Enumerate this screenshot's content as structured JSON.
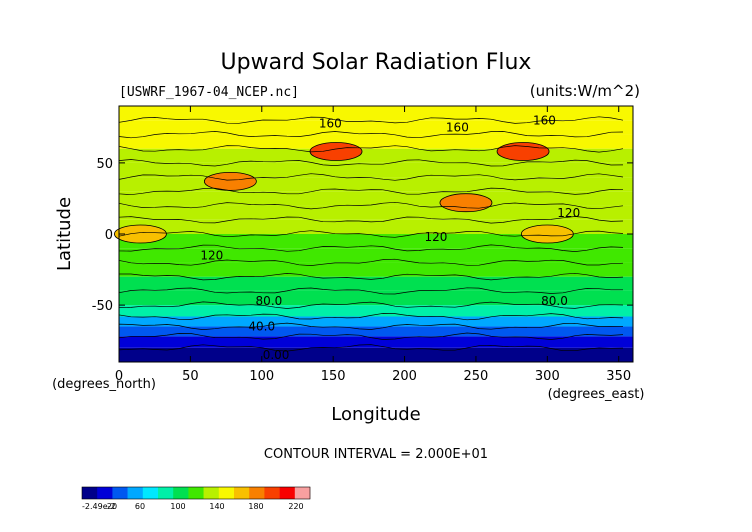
{
  "chart_data": {
    "type": "heatmap",
    "title": "Upward Solar Radiation Flux",
    "subtitle_left": "[USWRF_1967-04_NCEP.nc]",
    "subtitle_right": "(units:W/m^2)",
    "xlabel": "Longitude",
    "ylabel": "Latitude",
    "x_unit_note": "(degrees_east)",
    "y_unit_note": "(degrees_north)",
    "xlim": [
      0,
      360
    ],
    "ylim": [
      -90,
      90
    ],
    "x_ticks": [
      0,
      50,
      100,
      150,
      200,
      250,
      300,
      350
    ],
    "y_ticks": [
      -50,
      0,
      50
    ],
    "contour_interval_text": "CONTOUR INTERVAL = 2.000E+01",
    "contour_labels": [
      "160",
      "160",
      "160",
      "120",
      "120",
      "120",
      "80.0",
      "80.0",
      "40.0",
      "0.00"
    ],
    "colorbar": {
      "tick_labels": [
        "-2.49e-2",
        "20",
        "60",
        "100",
        "140",
        "180",
        "220"
      ],
      "min": 0,
      "max": 240,
      "colors": [
        "#00008a",
        "#0000d8",
        "#0058f0",
        "#00a8ff",
        "#00e8ff",
        "#00f0a8",
        "#00e050",
        "#40e800",
        "#b8f000",
        "#f8f800",
        "#f8c000",
        "#f88000",
        "#f84000",
        "#f80000",
        "#f8a0a0"
      ]
    },
    "latitude_profile": [
      {
        "lat": -90,
        "value": 2
      },
      {
        "lat": -80,
        "value": 10
      },
      {
        "lat": -72,
        "value": 22
      },
      {
        "lat": -65,
        "value": 45
      },
      {
        "lat": -58,
        "value": 75
      },
      {
        "lat": -50,
        "value": 90
      },
      {
        "lat": -40,
        "value": 105
      },
      {
        "lat": -30,
        "value": 115
      },
      {
        "lat": -20,
        "value": 118
      },
      {
        "lat": -10,
        "value": 125
      },
      {
        "lat": 0,
        "value": 130
      },
      {
        "lat": 10,
        "value": 130
      },
      {
        "lat": 20,
        "value": 135
      },
      {
        "lat": 30,
        "value": 140
      },
      {
        "lat": 40,
        "value": 130
      },
      {
        "lat": 50,
        "value": 135
      },
      {
        "lat": 60,
        "value": 150
      },
      {
        "lat": 70,
        "value": 160
      },
      {
        "lat": 80,
        "value": 150
      },
      {
        "lat": 90,
        "value": 140
      }
    ],
    "hotspots": [
      {
        "lon": 283,
        "lat": 58,
        "value": 200
      },
      {
        "lon": 152,
        "lat": 58,
        "value": 200
      },
      {
        "lon": 78,
        "lat": 37,
        "value": 190
      },
      {
        "lon": 243,
        "lat": 22,
        "value": 180
      },
      {
        "lon": 15,
        "lat": 0,
        "value": 160
      },
      {
        "lon": 300,
        "lat": 0,
        "value": 160
      }
    ]
  }
}
